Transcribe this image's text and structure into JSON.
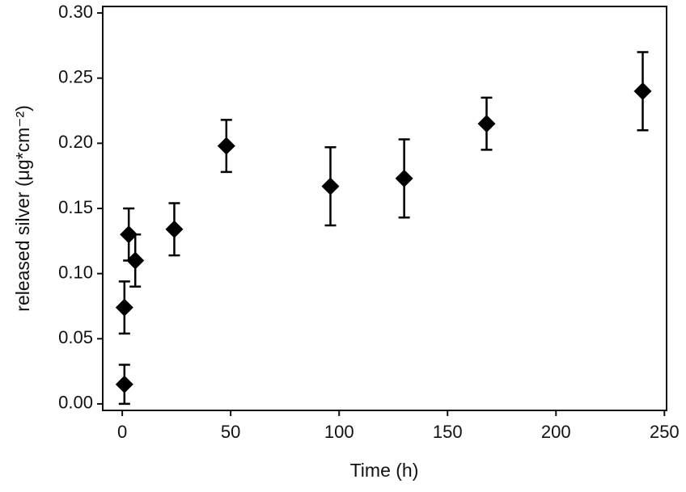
{
  "chart_data": {
    "type": "scatter",
    "x_label": "Time (h)",
    "y_label": "released silver (μg*cm⁻²)",
    "x": [
      1,
      1,
      3,
      6,
      24,
      48,
      96,
      130,
      168,
      240
    ],
    "values": [
      0.015,
      0.074,
      0.13,
      0.11,
      0.134,
      0.198,
      0.167,
      0.173,
      0.215,
      0.24
    ],
    "errors": [
      0.015,
      0.02,
      0.02,
      0.02,
      0.02,
      0.02,
      0.03,
      0.03,
      0.02,
      0.03
    ],
    "color": "#000000",
    "xlim": [
      -9,
      251
    ],
    "xticks": [
      0,
      50,
      100,
      150,
      200,
      250
    ],
    "ylim": [
      -0.005,
      0.305
    ],
    "yticks": [
      {
        "value": 0,
        "label": "0.00"
      },
      {
        "value": 0.05,
        "label": "0.05"
      },
      {
        "value": 0.1,
        "label": "0.10"
      },
      {
        "value": 0.15,
        "label": "0.15"
      },
      {
        "value": 0.2,
        "label": "0.20"
      },
      {
        "value": 0.25,
        "label": "0.25"
      },
      {
        "value": 0.3,
        "label": "0.30"
      }
    ],
    "grid": false
  }
}
